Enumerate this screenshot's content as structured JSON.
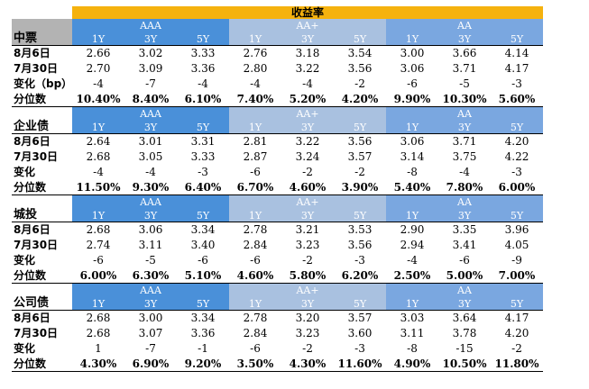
{
  "title": "收益率",
  "ratings": [
    "AAA",
    "AA+",
    "AA"
  ],
  "tenors": [
    "1Y",
    "3Y",
    "5Y"
  ],
  "sections": [
    {
      "name": "中票",
      "rows": [
        {
          "label": "8月6日",
          "values": [
            "2.66",
            "3.02",
            "3.33",
            "2.76",
            "3.18",
            "3.54",
            "3.00",
            "3.66",
            "4.14"
          ]
        },
        {
          "label": "7月30日",
          "values": [
            "2.70",
            "3.09",
            "3.36",
            "2.80",
            "3.22",
            "3.56",
            "3.06",
            "3.71",
            "4.17"
          ]
        },
        {
          "label": "变化（bp）",
          "values": [
            "-4",
            "-7",
            "-4",
            "-4",
            "-4",
            "-2",
            "-6",
            "-5",
            "-3"
          ]
        },
        {
          "label": "分位数",
          "values": [
            "10.40%",
            "8.40%",
            "6.10%",
            "7.40%",
            "5.20%",
            "4.20%",
            "9.90%",
            "10.30%",
            "5.60%"
          ]
        }
      ]
    },
    {
      "name": "企业债",
      "rows": [
        {
          "label": "8月6日",
          "values": [
            "2.64",
            "3.01",
            "3.31",
            "2.81",
            "3.22",
            "3.56",
            "3.06",
            "3.71",
            "4.20"
          ]
        },
        {
          "label": "7月30日",
          "values": [
            "2.68",
            "3.05",
            "3.33",
            "2.87",
            "3.24",
            "3.57",
            "3.14",
            "3.75",
            "4.22"
          ]
        },
        {
          "label": "变化",
          "values": [
            "-4",
            "-4",
            "-3",
            "-6",
            "-2",
            "-2",
            "-8",
            "-4",
            "-3"
          ]
        },
        {
          "label": "分位数",
          "values": [
            "11.50%",
            "9.30%",
            "6.40%",
            "6.70%",
            "4.60%",
            "3.90%",
            "5.40%",
            "7.80%",
            "6.00%"
          ]
        }
      ]
    },
    {
      "name": "城投",
      "rows": [
        {
          "label": "8月6日",
          "values": [
            "2.68",
            "3.06",
            "3.34",
            "2.78",
            "3.21",
            "3.53",
            "2.90",
            "3.35",
            "3.96"
          ]
        },
        {
          "label": "7月30日",
          "values": [
            "2.74",
            "3.11",
            "3.40",
            "2.84",
            "3.23",
            "3.56",
            "2.94",
            "3.41",
            "4.05"
          ]
        },
        {
          "label": "变化",
          "values": [
            "-6",
            "-5",
            "-6",
            "-6",
            "-2",
            "-3",
            "-4",
            "-6",
            "-9"
          ]
        },
        {
          "label": "分位数",
          "values": [
            "6.00%",
            "6.30%",
            "5.10%",
            "4.60%",
            "5.80%",
            "6.20%",
            "2.50%",
            "5.00%",
            "7.00%"
          ]
        }
      ]
    },
    {
      "name": "公司债",
      "rows": [
        {
          "label": "8月6日",
          "values": [
            "2.68",
            "3.00",
            "3.34",
            "2.78",
            "3.20",
            "3.57",
            "3.03",
            "3.64",
            "4.17"
          ]
        },
        {
          "label": "7月30日",
          "values": [
            "2.68",
            "3.07",
            "3.36",
            "2.84",
            "3.23",
            "3.60",
            "3.11",
            "3.78",
            "4.20"
          ]
        },
        {
          "label": "变化",
          "values": [
            "1",
            "-7",
            "-1",
            "-6",
            "-2",
            "-3",
            "-8",
            "-15",
            "-2"
          ]
        },
        {
          "label": "分位数",
          "values": [
            "4.30%",
            "6.90%",
            "9.20%",
            "3.50%",
            "4.30%",
            "11.60%",
            "4.90%",
            "10.50%",
            "11.80%"
          ]
        }
      ]
    }
  ],
  "colors": {
    "title_bg": "#f5b20e",
    "aaa_bg": "#4a90d9",
    "aa_plus_bg": "#a9c1e0",
    "aa_bg": "#7aa7e0",
    "label_gray": "#b3b3b3"
  }
}
